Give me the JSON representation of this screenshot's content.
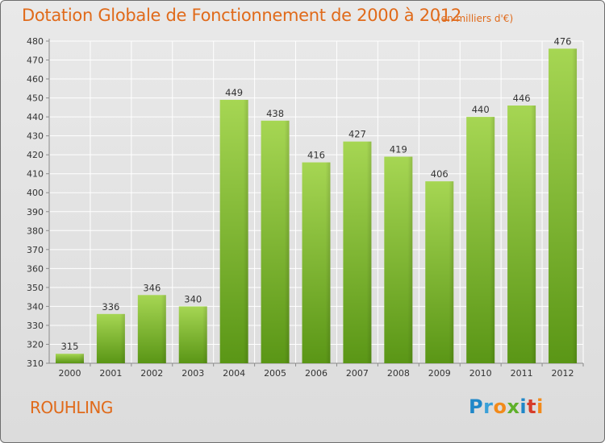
{
  "header": {
    "title": "Dotation Globale de Fonctionnement de 2000 à 2012",
    "unit": "(en milliers d'€)"
  },
  "footer": {
    "commune": "ROUHLING",
    "logo": "Proxiti"
  },
  "colors": {
    "accent": "#e06a1a",
    "bar_light": "#9fd04e",
    "bar_dark": "#5e9a1a",
    "background": "#e3e3e3"
  },
  "chart_data": {
    "type": "bar",
    "title": "Dotation Globale de Fonctionnement de 2000 à 2012",
    "categories": [
      "2000",
      "2001",
      "2002",
      "2003",
      "2004",
      "2005",
      "2006",
      "2007",
      "2008",
      "2009",
      "2010",
      "2011",
      "2012"
    ],
    "values": [
      315,
      336,
      346,
      340,
      449,
      438,
      416,
      427,
      419,
      406,
      440,
      446,
      476
    ],
    "data_labels": [
      "315",
      "336",
      "346",
      "340",
      "449",
      "438",
      "416",
      "427",
      "419",
      "406",
      "440",
      "446",
      "476"
    ],
    "ylim": [
      310,
      480
    ],
    "yticks": [
      "310",
      "320",
      "330",
      "340",
      "350",
      "360",
      "370",
      "380",
      "390",
      "400",
      "410",
      "420",
      "430",
      "440",
      "450",
      "460",
      "470",
      "480"
    ],
    "grid": true,
    "xlabel": "",
    "ylabel": ""
  }
}
